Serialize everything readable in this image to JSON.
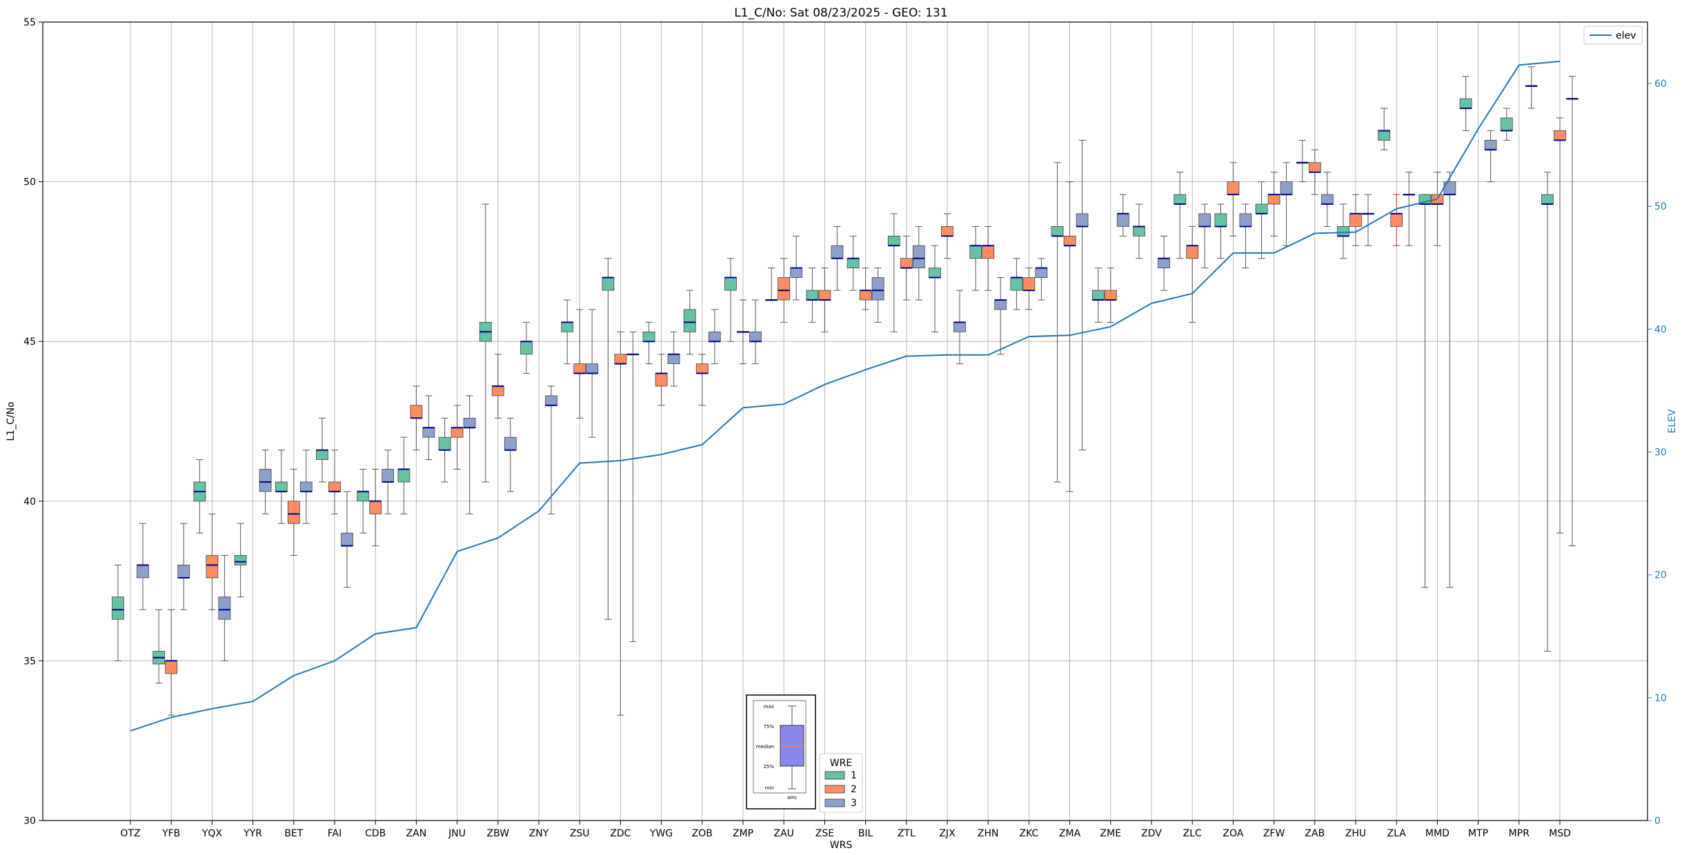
{
  "chart_data": {
    "type": "box",
    "title": "L1_C/No: Sat 08/23/2025 - GEO: 131",
    "xlabel": "WRS",
    "ylabel": "L1_C/No",
    "y2label": "ELEV",
    "ylim": [
      30,
      55
    ],
    "y2lim": [
      0,
      65
    ],
    "yticks": [
      "30",
      "35",
      "40",
      "45",
      "50",
      "55"
    ],
    "y2ticks": [
      "0",
      "10",
      "20",
      "30",
      "40",
      "50",
      "60"
    ],
    "grid": true,
    "colors": {
      "1": "#66c2a5",
      "2": "#fc8d62",
      "3": "#8da0cb",
      "elev": "#1f77b4",
      "median": "#00008b",
      "outlier_whisker": "#d62728"
    },
    "categories": [
      "OTZ",
      "YFB",
      "YQX",
      "YYR",
      "BET",
      "FAI",
      "CDB",
      "ZAN",
      "JNU",
      "ZBW",
      "ZNY",
      "ZSU",
      "ZDC",
      "YWG",
      "ZOB",
      "ZMP",
      "ZAU",
      "ZSE",
      "BIL",
      "ZTL",
      "ZJX",
      "ZHN",
      "ZKC",
      "ZMA",
      "ZME",
      "ZDV",
      "ZLC",
      "ZOA",
      "ZFW",
      "ZAB",
      "ZHU",
      "ZLA",
      "MMD",
      "MTP",
      "MPR",
      "MSD"
    ],
    "elev": [
      7.3,
      8.4,
      9.1,
      9.7,
      11.8,
      13.0,
      15.2,
      15.7,
      21.9,
      23.0,
      25.2,
      29.1,
      29.3,
      29.8,
      30.6,
      33.6,
      33.9,
      35.5,
      36.7,
      37.8,
      37.9,
      37.9,
      39.4,
      39.5,
      40.2,
      42.1,
      42.9,
      46.2,
      46.2,
      47.8,
      47.9,
      49.8,
      50.6,
      56.3,
      61.5,
      61.8
    ],
    "legend": {
      "title": "WRE",
      "entries": [
        "1",
        "2",
        "3"
      ]
    },
    "line_legend": [
      "elev"
    ],
    "inset_key": {
      "labels": [
        "max",
        "75%",
        "median",
        "25%",
        "min"
      ],
      "xlabel": "WRS"
    },
    "series": [
      {
        "name": "1",
        "boxes": [
          {
            "cat": 0,
            "min": 35.0,
            "q1": 36.3,
            "med": 36.6,
            "q3": 37.0,
            "max": 38.0
          },
          {
            "cat": 1,
            "min": 34.3,
            "q1": 34.9,
            "med": 35.1,
            "q3": 35.3,
            "max": 36.6
          },
          {
            "cat": 2,
            "min": 39.0,
            "q1": 40.0,
            "med": 40.3,
            "q3": 40.6,
            "max": 41.3
          },
          {
            "cat": 3,
            "min": 37.0,
            "q1": 38.0,
            "med": 38.1,
            "q3": 38.3,
            "max": 39.3
          },
          {
            "cat": 4,
            "min": 39.3,
            "q1": 40.3,
            "med": 40.3,
            "q3": 40.6,
            "max": 41.6
          },
          {
            "cat": 5,
            "min": 40.6,
            "q1": 41.3,
            "med": 41.6,
            "q3": 41.6,
            "max": 42.6
          },
          {
            "cat": 6,
            "min": 39.0,
            "q1": 40.0,
            "med": 40.3,
            "q3": 40.3,
            "max": 41.0
          },
          {
            "cat": 7,
            "min": 39.6,
            "q1": 40.6,
            "med": 41.0,
            "q3": 41.0,
            "max": 42.0
          },
          {
            "cat": 8,
            "min": 40.6,
            "q1": 41.6,
            "med": 41.6,
            "q3": 42.0,
            "max": 42.6
          },
          {
            "cat": 9,
            "min": 40.6,
            "q1": 45.0,
            "med": 45.3,
            "q3": 45.6,
            "max": 49.3
          },
          {
            "cat": 10,
            "min": 44.0,
            "q1": 44.6,
            "med": 45.0,
            "q3": 45.0,
            "max": 45.6
          },
          {
            "cat": 11,
            "min": 44.3,
            "q1": 45.3,
            "med": 45.6,
            "q3": 45.6,
            "max": 46.3
          },
          {
            "cat": 12,
            "min": 36.3,
            "q1": 46.6,
            "med": 47.0,
            "q3": 47.0,
            "max": 47.6
          },
          {
            "cat": 13,
            "min": 44.3,
            "q1": 45.0,
            "med": 45.0,
            "q3": 45.3,
            "max": 45.6
          },
          {
            "cat": 14,
            "min": 44.6,
            "q1": 45.3,
            "med": 45.6,
            "q3": 46.0,
            "max": 46.6
          },
          {
            "cat": 15,
            "min": 45.0,
            "q1": 46.6,
            "med": 47.0,
            "q3": 47.0,
            "max": 47.6
          },
          {
            "cat": 16,
            "min": 46.3,
            "q1": 46.3,
            "med": 46.3,
            "q3": 46.3,
            "max": 47.3
          },
          {
            "cat": 17,
            "min": 45.6,
            "q1": 46.3,
            "med": 46.3,
            "q3": 46.6,
            "max": 47.3
          },
          {
            "cat": 18,
            "min": 46.6,
            "q1": 47.3,
            "med": 47.6,
            "q3": 47.6,
            "max": 48.3
          },
          {
            "cat": 19,
            "min": 45.3,
            "q1": 48.0,
            "med": 48.0,
            "q3": 48.3,
            "max": 49.0
          },
          {
            "cat": 20,
            "min": 45.3,
            "q1": 47.0,
            "med": 47.0,
            "q3": 47.3,
            "max": 48.0
          },
          {
            "cat": 21,
            "min": 46.6,
            "q1": 47.6,
            "med": 48.0,
            "q3": 48.0,
            "max": 48.6
          },
          {
            "cat": 22,
            "min": 46.0,
            "q1": 46.6,
            "med": 47.0,
            "q3": 47.0,
            "max": 47.6
          },
          {
            "cat": 23,
            "min": 40.6,
            "q1": 48.3,
            "med": 48.3,
            "q3": 48.6,
            "max": 50.6
          },
          {
            "cat": 24,
            "min": 45.6,
            "q1": 46.3,
            "med": 46.3,
            "q3": 46.6,
            "max": 47.3
          },
          {
            "cat": 25,
            "min": 47.6,
            "q1": 48.3,
            "med": 48.6,
            "q3": 48.6,
            "max": 49.3
          },
          {
            "cat": 26,
            "min": 47.6,
            "q1": 49.3,
            "med": 49.3,
            "q3": 49.6,
            "max": 50.3
          },
          {
            "cat": 27,
            "min": 47.6,
            "q1": 48.6,
            "med": 48.6,
            "q3": 49.0,
            "max": 49.3
          },
          {
            "cat": 28,
            "min": 47.6,
            "q1": 49.0,
            "med": 49.0,
            "q3": 49.3,
            "max": 50.0
          },
          {
            "cat": 29,
            "min": 50.0,
            "q1": 50.6,
            "med": 50.6,
            "q3": 50.6,
            "max": 51.3
          },
          {
            "cat": 30,
            "min": 47.6,
            "q1": 48.3,
            "med": 48.3,
            "q3": 48.6,
            "max": 49.3
          },
          {
            "cat": 31,
            "min": 51.0,
            "q1": 51.3,
            "med": 51.6,
            "q3": 51.6,
            "max": 52.3
          },
          {
            "cat": 32,
            "min": 37.3,
            "q1": 49.3,
            "med": 49.3,
            "q3": 49.6,
            "max": 49.6
          },
          {
            "cat": 33,
            "min": 51.6,
            "q1": 52.3,
            "med": 52.3,
            "q3": 52.6,
            "max": 53.3
          },
          {
            "cat": 34,
            "min": 51.3,
            "q1": 51.6,
            "med": 51.6,
            "q3": 52.0,
            "max": 52.3
          },
          {
            "cat": 35,
            "min": 35.3,
            "q1": 49.3,
            "med": 49.3,
            "q3": 49.6,
            "max": 50.3
          }
        ]
      },
      {
        "name": "2",
        "boxes": [
          {
            "cat": 1,
            "min": 33.3,
            "q1": 34.6,
            "med": 35.0,
            "q3": 35.0,
            "max": 36.6
          },
          {
            "cat": 2,
            "min": 36.6,
            "q1": 37.6,
            "med": 38.0,
            "q3": 38.3,
            "max": 39.6
          },
          {
            "cat": 4,
            "min": 38.3,
            "q1": 39.3,
            "med": 39.6,
            "q3": 40.0,
            "max": 41.0
          },
          {
            "cat": 5,
            "min": 39.6,
            "q1": 40.3,
            "med": 40.3,
            "q3": 40.6,
            "max": 41.6
          },
          {
            "cat": 6,
            "min": 38.6,
            "q1": 39.6,
            "med": 40.0,
            "q3": 40.0,
            "max": 41.0
          },
          {
            "cat": 7,
            "min": 41.6,
            "q1": 42.6,
            "med": 42.6,
            "q3": 43.0,
            "max": 43.6
          },
          {
            "cat": 8,
            "min": 41.0,
            "q1": 42.0,
            "med": 42.3,
            "q3": 42.3,
            "max": 43.0
          },
          {
            "cat": 9,
            "min": 42.6,
            "q1": 43.3,
            "med": 43.6,
            "q3": 43.6,
            "max": 44.6
          },
          {
            "cat": 11,
            "min": 42.6,
            "q1": 44.0,
            "med": 44.0,
            "q3": 44.3,
            "max": 46.0
          },
          {
            "cat": 12,
            "min": 33.3,
            "q1": 44.3,
            "med": 44.3,
            "q3": 44.6,
            "max": 45.3
          },
          {
            "cat": 13,
            "min": 43.0,
            "q1": 43.6,
            "med": 44.0,
            "q3": 44.0,
            "max": 44.6
          },
          {
            "cat": 14,
            "min": 43.0,
            "q1": 44.0,
            "med": 44.0,
            "q3": 44.3,
            "max": 44.6
          },
          {
            "cat": 15,
            "min": 44.3,
            "q1": 45.3,
            "med": 45.3,
            "q3": 45.3,
            "max": 46.3
          },
          {
            "cat": 16,
            "min": 45.6,
            "q1": 46.3,
            "med": 46.6,
            "q3": 47.0,
            "max": 47.6
          },
          {
            "cat": 17,
            "min": 45.3,
            "q1": 46.3,
            "med": 46.3,
            "q3": 46.6,
            "max": 47.3
          },
          {
            "cat": 18,
            "min": 46.0,
            "q1": 46.3,
            "med": 46.6,
            "q3": 46.6,
            "max": 47.3
          },
          {
            "cat": 19,
            "min": 46.3,
            "q1": 47.3,
            "med": 47.3,
            "q3": 47.6,
            "max": 48.3
          },
          {
            "cat": 20,
            "min": 47.6,
            "q1": 48.3,
            "med": 48.3,
            "q3": 48.6,
            "max": 49.0
          },
          {
            "cat": 21,
            "min": 46.6,
            "q1": 47.6,
            "med": 48.0,
            "q3": 48.0,
            "max": 48.6
          },
          {
            "cat": 22,
            "min": 46.0,
            "q1": 46.6,
            "med": 46.6,
            "q3": 47.0,
            "max": 47.3
          },
          {
            "cat": 23,
            "min": 40.3,
            "q1": 48.0,
            "med": 48.0,
            "q3": 48.3,
            "max": 50.0
          },
          {
            "cat": 24,
            "min": 45.6,
            "q1": 46.3,
            "med": 46.3,
            "q3": 46.6,
            "max": 47.3
          },
          {
            "cat": 26,
            "min": 45.6,
            "q1": 47.6,
            "med": 48.0,
            "q3": 48.0,
            "max": 48.6
          },
          {
            "cat": 27,
            "min": 48.3,
            "q1": 49.6,
            "med": 49.6,
            "q3": 50.0,
            "max": 50.6
          },
          {
            "cat": 28,
            "min": 48.3,
            "q1": 49.3,
            "med": 49.6,
            "q3": 49.6,
            "max": 50.3
          },
          {
            "cat": 29,
            "min": 49.6,
            "q1": 50.3,
            "med": 50.3,
            "q3": 50.6,
            "max": 51.0
          },
          {
            "cat": 30,
            "min": 48.0,
            "q1": 48.6,
            "med": 49.0,
            "q3": 49.0,
            "max": 49.6
          },
          {
            "cat": 31,
            "min": 48.0,
            "q1": 48.6,
            "med": 49.0,
            "q3": 49.0,
            "max": 49.6
          },
          {
            "cat": 32,
            "min": 48.0,
            "q1": 49.3,
            "med": 49.3,
            "q3": 49.6,
            "max": 50.3
          },
          {
            "cat": 35,
            "min": 39.0,
            "q1": 51.3,
            "med": 51.3,
            "q3": 51.6,
            "max": 52.0
          }
        ]
      },
      {
        "name": "3",
        "boxes": [
          {
            "cat": 0,
            "min": 36.6,
            "q1": 37.6,
            "med": 38.0,
            "q3": 38.0,
            "max": 39.3
          },
          {
            "cat": 1,
            "min": 36.6,
            "q1": 37.6,
            "med": 37.6,
            "q3": 38.0,
            "max": 39.3
          },
          {
            "cat": 2,
            "min": 35.0,
            "q1": 36.3,
            "med": 36.6,
            "q3": 37.0,
            "max": 38.3
          },
          {
            "cat": 3,
            "min": 39.6,
            "q1": 40.3,
            "med": 40.6,
            "q3": 41.0,
            "max": 41.6
          },
          {
            "cat": 4,
            "min": 39.3,
            "q1": 40.3,
            "med": 40.3,
            "q3": 40.6,
            "max": 41.6
          },
          {
            "cat": 5,
            "min": 37.3,
            "q1": 38.6,
            "med": 38.6,
            "q3": 39.0,
            "max": 40.3
          },
          {
            "cat": 6,
            "min": 39.6,
            "q1": 40.6,
            "med": 40.6,
            "q3": 41.0,
            "max": 41.6
          },
          {
            "cat": 7,
            "min": 41.3,
            "q1": 42.0,
            "med": 42.3,
            "q3": 42.3,
            "max": 43.3
          },
          {
            "cat": 8,
            "min": 39.6,
            "q1": 42.3,
            "med": 42.3,
            "q3": 42.6,
            "max": 43.3
          },
          {
            "cat": 9,
            "min": 40.3,
            "q1": 41.6,
            "med": 41.6,
            "q3": 42.0,
            "max": 42.6
          },
          {
            "cat": 10,
            "min": 39.6,
            "q1": 43.0,
            "med": 43.0,
            "q3": 43.3,
            "max": 43.6
          },
          {
            "cat": 11,
            "min": 42.0,
            "q1": 44.0,
            "med": 44.0,
            "q3": 44.3,
            "max": 46.0
          },
          {
            "cat": 12,
            "min": 35.6,
            "q1": 44.6,
            "med": 44.6,
            "q3": 44.6,
            "max": 45.3
          },
          {
            "cat": 13,
            "min": 43.6,
            "q1": 44.3,
            "med": 44.6,
            "q3": 44.6,
            "max": 45.3
          },
          {
            "cat": 14,
            "min": 44.3,
            "q1": 45.0,
            "med": 45.0,
            "q3": 45.3,
            "max": 46.0
          },
          {
            "cat": 15,
            "min": 44.3,
            "q1": 45.0,
            "med": 45.0,
            "q3": 45.3,
            "max": 46.3
          },
          {
            "cat": 16,
            "min": 46.3,
            "q1": 47.0,
            "med": 47.3,
            "q3": 47.3,
            "max": 48.3
          },
          {
            "cat": 17,
            "min": 46.6,
            "q1": 47.6,
            "med": 47.6,
            "q3": 48.0,
            "max": 48.6
          },
          {
            "cat": 18,
            "min": 45.6,
            "q1": 46.3,
            "med": 46.6,
            "q3": 47.0,
            "max": 47.3
          },
          {
            "cat": 19,
            "min": 46.3,
            "q1": 47.3,
            "med": 47.6,
            "q3": 48.0,
            "max": 48.6
          },
          {
            "cat": 20,
            "min": 44.3,
            "q1": 45.3,
            "med": 45.6,
            "q3": 45.6,
            "max": 46.6
          },
          {
            "cat": 21,
            "min": 44.6,
            "q1": 46.0,
            "med": 46.3,
            "q3": 46.3,
            "max": 47.0
          },
          {
            "cat": 22,
            "min": 46.3,
            "q1": 47.0,
            "med": 47.3,
            "q3": 47.3,
            "max": 47.6
          },
          {
            "cat": 23,
            "min": 41.6,
            "q1": 48.6,
            "med": 48.6,
            "q3": 49.0,
            "max": 51.3
          },
          {
            "cat": 24,
            "min": 48.3,
            "q1": 48.6,
            "med": 49.0,
            "q3": 49.0,
            "max": 49.6
          },
          {
            "cat": 25,
            "min": 46.6,
            "q1": 47.3,
            "med": 47.6,
            "q3": 47.6,
            "max": 48.3
          },
          {
            "cat": 26,
            "min": 47.3,
            "q1": 48.6,
            "med": 48.6,
            "q3": 49.0,
            "max": 49.3
          },
          {
            "cat": 27,
            "min": 47.3,
            "q1": 48.6,
            "med": 48.6,
            "q3": 49.0,
            "max": 49.3
          },
          {
            "cat": 28,
            "min": 48.0,
            "q1": 49.6,
            "med": 49.6,
            "q3": 50.0,
            "max": 50.6
          },
          {
            "cat": 29,
            "min": 48.6,
            "q1": 49.3,
            "med": 49.3,
            "q3": 49.6,
            "max": 50.3
          },
          {
            "cat": 30,
            "min": 48.0,
            "q1": 49.0,
            "med": 49.0,
            "q3": 49.0,
            "max": 49.6
          },
          {
            "cat": 31,
            "min": 48.0,
            "q1": 49.6,
            "med": 49.6,
            "q3": 49.6,
            "max": 50.3
          },
          {
            "cat": 32,
            "min": 37.3,
            "q1": 49.6,
            "med": 49.6,
            "q3": 50.0,
            "max": 50.3
          },
          {
            "cat": 33,
            "min": 50.0,
            "q1": 51.0,
            "med": 51.0,
            "q3": 51.3,
            "max": 51.6
          },
          {
            "cat": 34,
            "min": 52.3,
            "q1": 53.0,
            "med": 53.0,
            "q3": 53.0,
            "max": 53.6
          },
          {
            "cat": 35,
            "min": 38.6,
            "q1": 52.6,
            "med": 52.6,
            "q3": 52.6,
            "max": 53.3
          }
        ]
      }
    ]
  }
}
